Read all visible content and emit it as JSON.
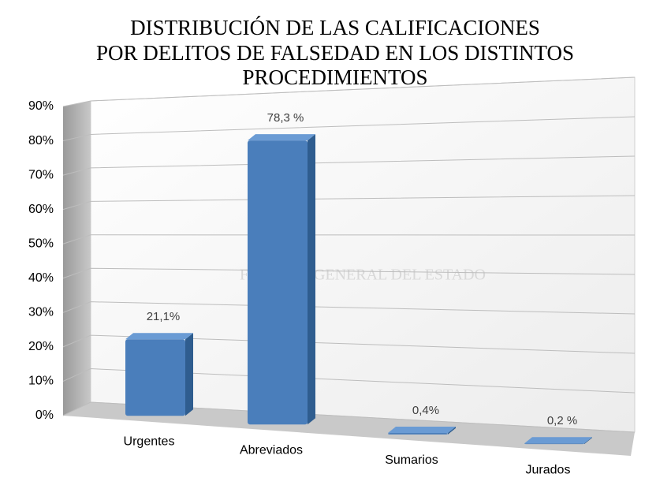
{
  "chart_data": {
    "type": "bar",
    "title": [
      "DISTRIBUCIÓN DE LAS CALIFICACIONES",
      "POR DELITOS DE FALSEDAD EN LOS DISTINTOS",
      "PROCEDIMIENTOS"
    ],
    "watermark": "FISCALIA GENERAL DEL ESTADO",
    "categories": [
      "Urgentes",
      "Abreviados",
      "Sumarios",
      "Jurados"
    ],
    "values": [
      21.1,
      78.3,
      0.4,
      0.2
    ],
    "value_labels": [
      "21,1%",
      "78,3 %",
      "0,4%",
      "0,2 %"
    ],
    "color": "#4a7ebb",
    "ylim": [
      0,
      90
    ],
    "yticks": [
      {
        "value": 0,
        "label": "0%"
      },
      {
        "value": 10,
        "label": "10%"
      },
      {
        "value": 20,
        "label": "20%"
      },
      {
        "value": 30,
        "label": "30%"
      },
      {
        "value": 40,
        "label": "40%"
      },
      {
        "value": 50,
        "label": "50%"
      },
      {
        "value": 60,
        "label": "60%"
      },
      {
        "value": 70,
        "label": "70%"
      },
      {
        "value": 80,
        "label": "80%"
      },
      {
        "value": 90,
        "label": "90%"
      }
    ],
    "grid": true
  }
}
